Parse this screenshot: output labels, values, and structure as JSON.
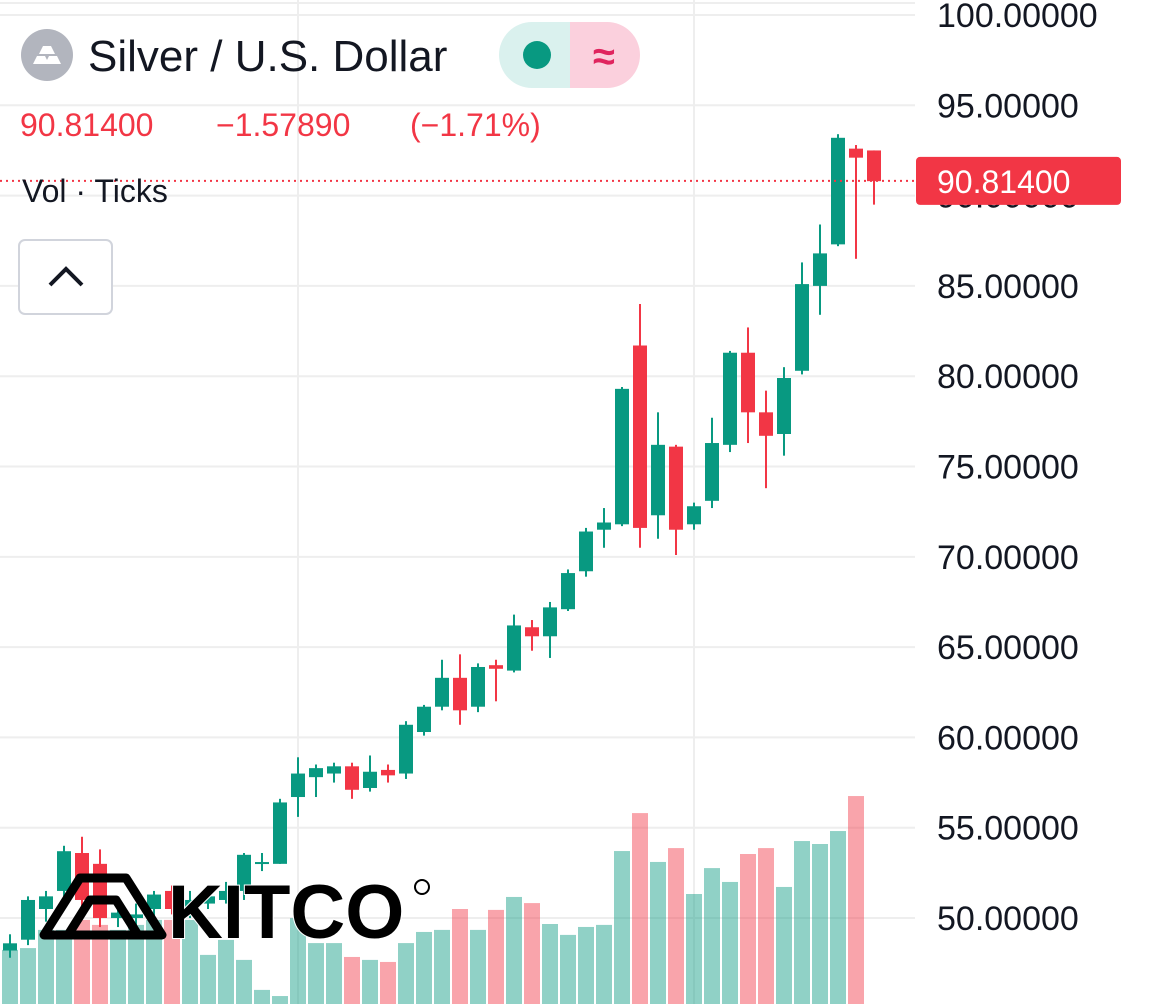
{
  "chart_data": {
    "type": "candlestick",
    "title": "Silver / U.S. Dollar",
    "last_price": {
      "value": 90.814,
      "label": "90.81400"
    },
    "change": {
      "value": -1.5789,
      "label": "−1.57890"
    },
    "change_pct": {
      "value": -1.71,
      "label": "(−1.71%)"
    },
    "indicator_label": "Vol · Ticks",
    "logo": "KITCO",
    "up_color": "#089981",
    "down_color": "#f23645",
    "grid": true,
    "ylim": [
      45.24,
      100.83
    ],
    "yticks": [
      {
        "value": 50,
        "label": "50.00000"
      },
      {
        "value": 55,
        "label": "55.00000"
      },
      {
        "value": 60,
        "label": "60.00000"
      },
      {
        "value": 65,
        "label": "65.00000"
      },
      {
        "value": 70,
        "label": "70.00000"
      },
      {
        "value": 75,
        "label": "75.00000"
      },
      {
        "value": 80,
        "label": "80.00000"
      },
      {
        "value": 85,
        "label": "85.00000"
      },
      {
        "value": 90,
        "label": "90.00000"
      },
      {
        "value": 95,
        "label": "95.00000"
      },
      {
        "value": 100,
        "label": "100.00000"
      }
    ],
    "open": [
      48.2,
      48.8,
      50.5,
      51.5,
      53.6,
      53.0,
      50.0,
      50.0,
      50.5,
      51.5,
      50.5,
      50.8,
      51.0,
      51.5,
      53.0,
      53.0,
      56.7,
      57.8,
      58.0,
      58.4,
      57.2,
      58.2,
      58.0,
      60.3,
      61.7,
      63.3,
      61.7,
      64.0,
      63.7,
      66.1,
      65.6,
      67.1,
      69.2,
      71.5,
      71.8,
      81.7,
      72.3,
      76.1,
      71.8,
      73.1,
      76.2,
      81.3,
      78.0,
      76.8,
      80.3,
      85.0,
      87.3,
      92.6,
      92.5
    ],
    "high": [
      49.1,
      51.2,
      51.5,
      54.0,
      54.5,
      53.8,
      51.0,
      50.8,
      51.5,
      51.8,
      51.5,
      51.5,
      52.0,
      53.6,
      53.6,
      56.6,
      58.9,
      58.5,
      58.6,
      58.6,
      59.0,
      58.5,
      60.9,
      61.8,
      64.3,
      64.6,
      64.1,
      64.3,
      66.8,
      66.5,
      67.5,
      69.3,
      71.6,
      72.7,
      79.4,
      84.0,
      78.0,
      76.2,
      73.0,
      77.7,
      81.4,
      82.7,
      79.2,
      80.5,
      86.3,
      88.4,
      93.4,
      92.8,
      92.5
    ],
    "low": [
      47.8,
      48.5,
      49.8,
      51.2,
      50.5,
      49.5,
      49.5,
      49.6,
      50.0,
      50.2,
      50.0,
      50.5,
      50.8,
      51.0,
      52.6,
      53.0,
      55.6,
      56.7,
      57.5,
      56.6,
      57.0,
      57.5,
      57.7,
      60.1,
      61.5,
      60.7,
      61.4,
      62.0,
      63.6,
      64.8,
      64.4,
      67.0,
      68.9,
      70.5,
      71.7,
      70.5,
      71.0,
      70.1,
      71.5,
      72.7,
      75.8,
      76.3,
      73.8,
      75.6,
      80.1,
      83.4,
      87.2,
      86.5,
      89.5
    ],
    "close": [
      48.6,
      51.0,
      51.2,
      53.7,
      51.0,
      50.0,
      50.3,
      50.2,
      51.3,
      50.5,
      51.0,
      51.2,
      51.5,
      53.5,
      53.1,
      56.4,
      58.0,
      58.3,
      58.4,
      57.1,
      58.1,
      57.9,
      60.7,
      61.7,
      63.3,
      61.5,
      63.9,
      63.8,
      66.2,
      65.6,
      67.2,
      69.1,
      71.4,
      71.9,
      79.3,
      71.6,
      76.2,
      71.5,
      72.8,
      76.3,
      81.3,
      78.0,
      76.7,
      79.9,
      85.1,
      86.8,
      93.2,
      92.1,
      90.8
    ],
    "volume": [
      23.8,
      24.6,
      32.6,
      32.6,
      37.0,
      34.8,
      32.6,
      34.8,
      37.0,
      37.0,
      37.0,
      21.6,
      28.2,
      19.4,
      6.2,
      3.5,
      37.8,
      26.8,
      26.8,
      20.7,
      19.4,
      18.5,
      26.8,
      31.7,
      32.6,
      41.8,
      32.6,
      41.4,
      47.1,
      44.4,
      35.2,
      30.4,
      33.9,
      34.8,
      67.3,
      84.0,
      62.5,
      68.6,
      48.4,
      59.8,
      53.7,
      66.0,
      68.6,
      51.5,
      71.7,
      70.4,
      76.1,
      91.5,
      null
    ]
  }
}
